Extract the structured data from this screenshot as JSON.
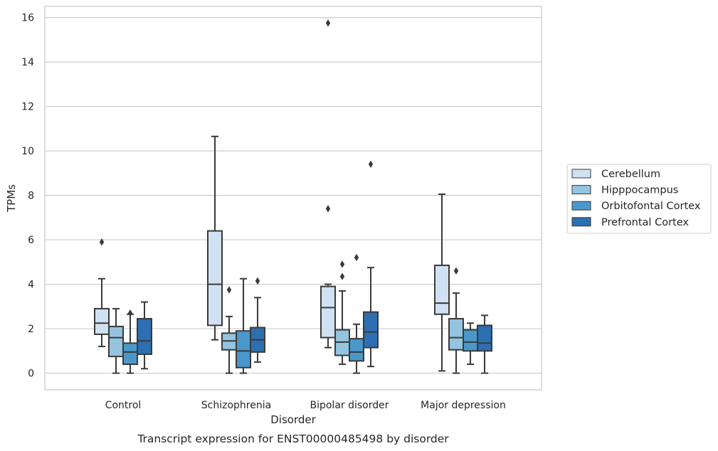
{
  "chart_data": {
    "type": "box",
    "caption": "Transcript expression for ENST00000485498 by disorder",
    "xlabel": "Disorder",
    "ylabel": "TPMs",
    "ylim": [
      -0.75,
      16.5
    ],
    "yticks": [
      0,
      2,
      4,
      6,
      8,
      10,
      12,
      14,
      16
    ],
    "grid": "horizontal",
    "legend_position": "right",
    "categories": [
      "Control",
      "Schizophrenia",
      "Bipolar disorder",
      "Major depression"
    ],
    "series": [
      {
        "name": "Cerebellum",
        "color": "#d0e1f2",
        "boxes": [
          {
            "whisker_low": 1.2,
            "q1": 1.75,
            "median": 2.25,
            "q3": 2.9,
            "whisker_high": 4.25,
            "outliers": [
              5.9
            ]
          },
          {
            "whisker_low": 1.5,
            "q1": 2.15,
            "median": 4.0,
            "q3": 6.4,
            "whisker_high": 10.65,
            "outliers": []
          },
          {
            "whisker_low": 1.15,
            "q1": 1.6,
            "median": 2.95,
            "q3": 3.9,
            "whisker_high": 4.0,
            "outliers": [
              7.4,
              15.75
            ]
          },
          {
            "whisker_low": 0.1,
            "q1": 2.65,
            "median": 3.15,
            "q3": 4.85,
            "whisker_high": 8.05,
            "outliers": []
          }
        ]
      },
      {
        "name": "Hipppocampus",
        "color": "#94c4df",
        "boxes": [
          {
            "whisker_low": 0.0,
            "q1": 0.75,
            "median": 1.6,
            "q3": 2.1,
            "whisker_high": 2.9,
            "outliers": []
          },
          {
            "whisker_low": 0.0,
            "q1": 1.05,
            "median": 1.45,
            "q3": 1.8,
            "whisker_high": 2.55,
            "outliers": [
              3.75
            ]
          },
          {
            "whisker_low": 0.4,
            "q1": 0.8,
            "median": 1.4,
            "q3": 1.95,
            "whisker_high": 3.7,
            "outliers": [
              4.35,
              4.9
            ]
          },
          {
            "whisker_low": 0.0,
            "q1": 1.05,
            "median": 1.6,
            "q3": 2.45,
            "whisker_high": 3.6,
            "outliers": [
              4.6
            ]
          }
        ]
      },
      {
        "name": "Orbitofontal Cortex",
        "color": "#4a98c9",
        "boxes": [
          {
            "whisker_low": 0.0,
            "q1": 0.4,
            "median": 0.95,
            "q3": 1.35,
            "whisker_high": 2.65,
            "outliers": [
              2.7
            ]
          },
          {
            "whisker_low": 0.0,
            "q1": 0.25,
            "median": 1.0,
            "q3": 1.9,
            "whisker_high": 4.25,
            "outliers": []
          },
          {
            "whisker_low": 0.0,
            "q1": 0.55,
            "median": 0.95,
            "q3": 1.55,
            "whisker_high": 2.2,
            "outliers": [
              5.2
            ]
          },
          {
            "whisker_low": 0.4,
            "q1": 1.0,
            "median": 1.4,
            "q3": 1.95,
            "whisker_high": 2.25,
            "outliers": []
          }
        ]
      },
      {
        "name": "Prefrontal Cortex",
        "color": "#2d6fb0",
        "boxes": [
          {
            "whisker_low": 0.2,
            "q1": 0.85,
            "median": 1.45,
            "q3": 2.45,
            "whisker_high": 3.2,
            "outliers": []
          },
          {
            "whisker_low": 0.5,
            "q1": 0.95,
            "median": 1.5,
            "q3": 2.05,
            "whisker_high": 3.4,
            "outliers": [
              4.15
            ]
          },
          {
            "whisker_low": 0.3,
            "q1": 1.15,
            "median": 1.85,
            "q3": 2.75,
            "whisker_high": 4.75,
            "outliers": [
              9.4
            ]
          },
          {
            "whisker_low": 0.0,
            "q1": 1.0,
            "median": 1.35,
            "q3": 2.15,
            "whisker_high": 2.6,
            "outliers": []
          }
        ]
      }
    ]
  }
}
